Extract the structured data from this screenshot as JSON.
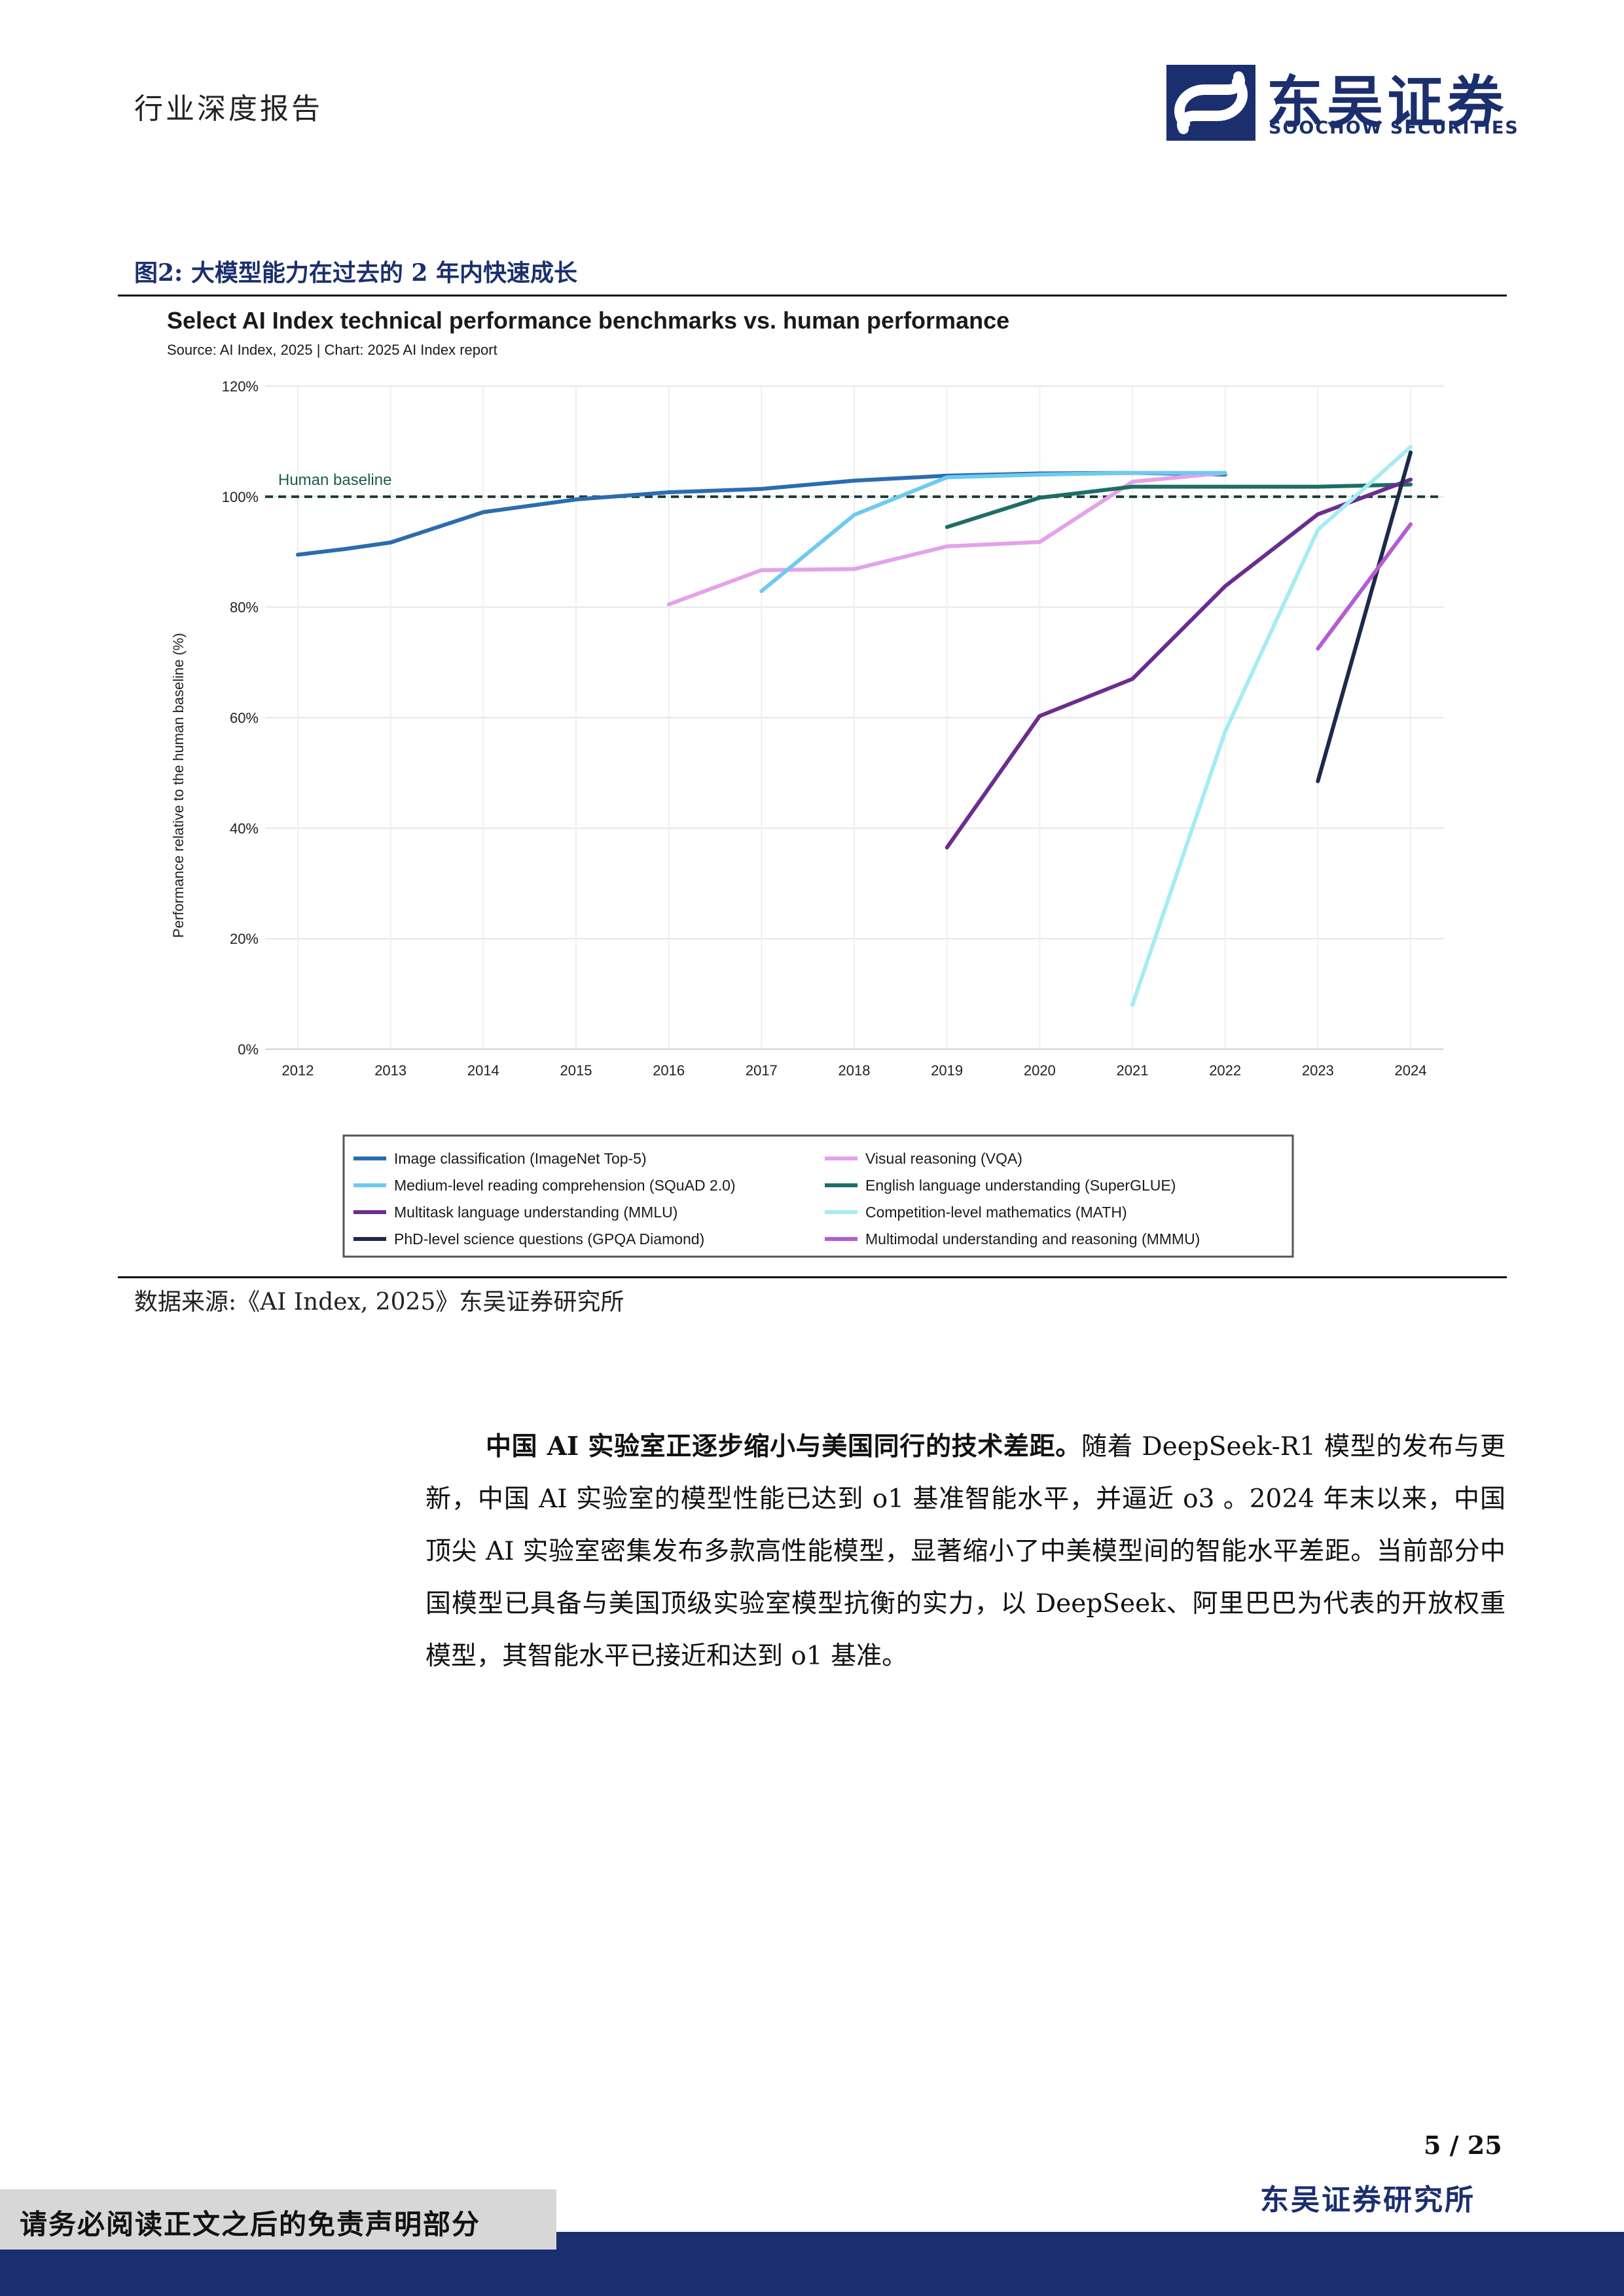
{
  "header": {
    "report_type": "行业深度报告",
    "logo_cn": "东吴证券",
    "logo_en": "SOOCHOW SECURITIES"
  },
  "figure": {
    "caption": "图2:  大模型能力在过去的 2 年内快速成长",
    "source_note": "数据来源:《AI Index, 2025》东吴证券研究所"
  },
  "chart_data": {
    "type": "line",
    "title": "Select AI Index technical performance benchmarks vs. human performance",
    "subtitle": "Source: AI Index, 2025 | Chart: 2025 AI Index report",
    "ylabel": "Performance relative to the human baseline (%)",
    "xlabel": "",
    "ylim": [
      0,
      120
    ],
    "yticks": [
      "0%",
      "20%",
      "40%",
      "60%",
      "80%",
      "100%",
      "120%"
    ],
    "xticks": [
      "2012",
      "2013",
      "2014",
      "2015",
      "2016",
      "2017",
      "2018",
      "2019",
      "2020",
      "2021",
      "2022",
      "2023",
      "2024"
    ],
    "grid": true,
    "baseline": {
      "label": "Human baseline",
      "value": 100
    },
    "legend_position": "bottom",
    "series": [
      {
        "name": "Image classification (ImageNet Top-5)",
        "color": "#2b6cb0",
        "points": [
          [
            2012,
            89.5
          ],
          [
            2012.5,
            90.5
          ],
          [
            2013,
            91.7
          ],
          [
            2014,
            97.2
          ],
          [
            2015,
            99.5
          ],
          [
            2016,
            100.8
          ],
          [
            2017,
            101.4
          ],
          [
            2018,
            102.9
          ],
          [
            2019,
            103.8
          ],
          [
            2020,
            104.2
          ],
          [
            2021,
            104.3
          ],
          [
            2022,
            104.0
          ]
        ]
      },
      {
        "name": "Visual reasoning (VQA)",
        "color": "#e4a2e9",
        "points": [
          [
            2016,
            80.5
          ],
          [
            2017,
            86.7
          ],
          [
            2018,
            86.9
          ],
          [
            2019,
            91.0
          ],
          [
            2020,
            91.8
          ],
          [
            2021,
            102.7
          ],
          [
            2022,
            104.3
          ]
        ]
      },
      {
        "name": "Medium-level reading comprehension (SQuAD 2.0)",
        "color": "#6fcaf0",
        "points": [
          [
            2017,
            82.9
          ],
          [
            2018,
            96.7
          ],
          [
            2019,
            103.5
          ],
          [
            2020,
            104.0
          ],
          [
            2021,
            104.3
          ],
          [
            2022,
            104.3
          ]
        ]
      },
      {
        "name": "English language understanding (SuperGLUE)",
        "color": "#1d6e66",
        "points": [
          [
            2019,
            94.5
          ],
          [
            2020,
            99.8
          ],
          [
            2021,
            101.8
          ],
          [
            2022,
            101.8
          ],
          [
            2023,
            101.8
          ],
          [
            2024,
            102.2
          ]
        ]
      },
      {
        "name": "Multitask language understanding (MMLU)",
        "color": "#6b2d8e",
        "points": [
          [
            2019,
            36.5
          ],
          [
            2020,
            60.3
          ],
          [
            2021,
            67.0
          ],
          [
            2022,
            83.8
          ],
          [
            2023,
            96.8
          ],
          [
            2024,
            103.1
          ]
        ]
      },
      {
        "name": "Competition-level mathematics (MATH)",
        "color": "#a6ecf2",
        "points": [
          [
            2021,
            8.0
          ],
          [
            2022,
            57.5
          ],
          [
            2023,
            94.0
          ],
          [
            2024,
            109.0
          ]
        ]
      },
      {
        "name": "PhD-level science questions (GPQA Diamond)",
        "color": "#1c2a4a",
        "points": [
          [
            2023,
            48.5
          ],
          [
            2024,
            108.0
          ]
        ]
      },
      {
        "name": "Multimodal understanding and reasoning (MMMU)",
        "color": "#b45cd1",
        "points": [
          [
            2023,
            72.5
          ],
          [
            2024,
            95.0
          ]
        ]
      }
    ],
    "legend_order": [
      "Image classification (ImageNet Top-5)",
      "Visual reasoning (VQA)",
      "Medium-level reading comprehension (SQuAD 2.0)",
      "English language understanding (SuperGLUE)",
      "Multitask language understanding (MMLU)",
      "Competition-level mathematics (MATH)",
      "PhD-level science questions (GPQA Diamond)",
      "Multimodal understanding and reasoning (MMMU)"
    ]
  },
  "body": {
    "lead_bold": "中国 AI 实验室正逐步缩小与美国同行的技术差距。",
    "text": "随着 DeepSeek-R1 模型的发布与更新，中国 AI 实验室的模型性能已达到 o1 基准智能水平，并逼近 o3 。2024 年末以来，中国顶尖 AI 实验室密集发布多款高性能模型，显著缩小了中美模型间的智能水平差距。当前部分中国模型已具备与美国顶级实验室模型抗衡的实力，以 DeepSeek、阿里巴巴为代表的开放权重模型，其智能水平已接近和达到 o1 基准。"
  },
  "footer": {
    "page": "5 / 25",
    "org": "东吴证券研究所",
    "disclaimer": "请务必阅读正文之后的免责声明部分"
  }
}
